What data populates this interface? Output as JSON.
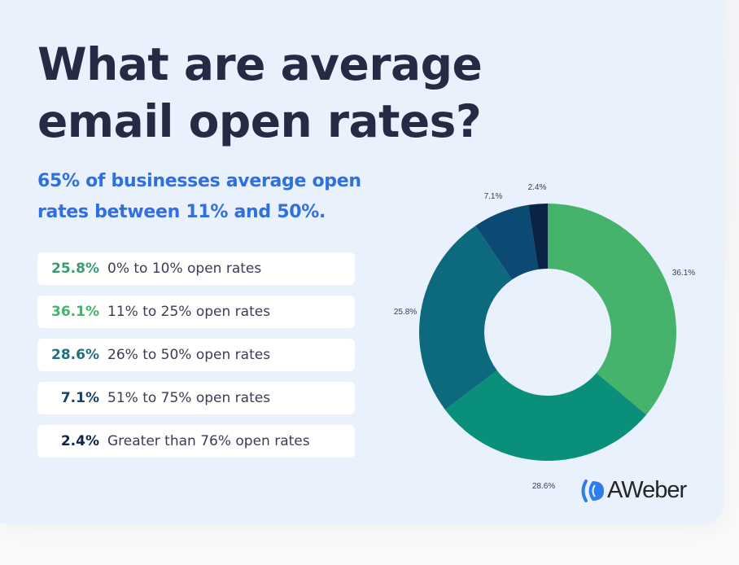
{
  "title_lines": [
    "What are average",
    "email open rates?"
  ],
  "subtitle": "65% of businesses average open rates between 11% and 50%.",
  "legend_rows": [
    {
      "value": "25.8%",
      "label": "0% to 10% open rates",
      "color": "#3a9b73"
    },
    {
      "value": "36.1%",
      "label": "11% to 25% open rates",
      "color": "#45b36b"
    },
    {
      "value": "28.6%",
      "label": "26% to 50% open rates",
      "color": "#1f6f80"
    },
    {
      "value": "7.1%",
      "label": "51% to 75% open rates",
      "color": "#17406b"
    },
    {
      "value": "2.4%",
      "label": "Greater than 76% open rates",
      "color": "#0f2449"
    }
  ],
  "chart_data": {
    "type": "pie",
    "donut": true,
    "start": "top, clockwise",
    "slices": [
      {
        "value": 36.1,
        "label": "36.1%",
        "color": "#45b36b"
      },
      {
        "value": 28.6,
        "label": "28.6%",
        "color": "#0a8f7a"
      },
      {
        "value": 25.8,
        "label": "25.8%",
        "color": "#0d6a7e"
      },
      {
        "value": 7.1,
        "label": "7.1%",
        "color": "#0b4a73"
      },
      {
        "value": 2.4,
        "label": "2.4%",
        "color": "#0a2346"
      }
    ]
  },
  "logo": {
    "text": "AWeber",
    "icon": "aweber-waves-icon",
    "color": "#2f7de8"
  }
}
